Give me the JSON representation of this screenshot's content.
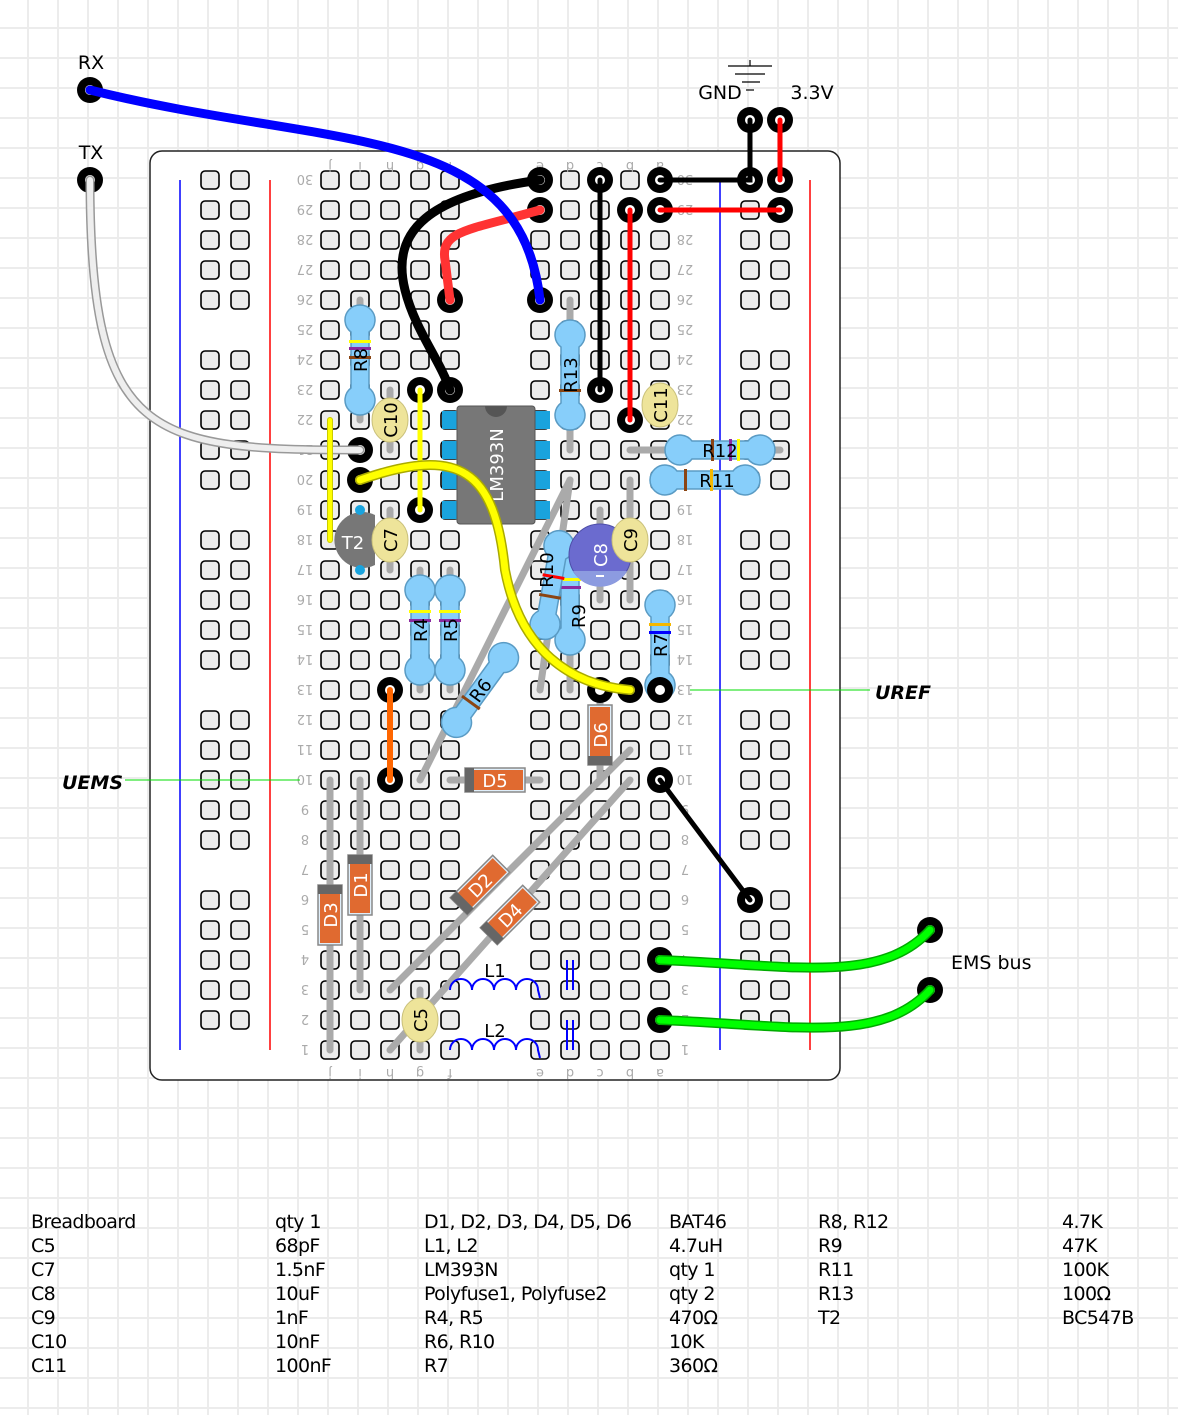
{
  "terminals": {
    "rx": "RX",
    "tx": "TX",
    "gnd": "GND",
    "v33": "3.3V",
    "ems_bus": "EMS bus"
  },
  "net_labels": {
    "uref": "UREF",
    "uems": "UEMS"
  },
  "breadboard": {
    "columns_left": [
      "j",
      "i",
      "h",
      "g",
      "f"
    ],
    "columns_right": [
      "e",
      "d",
      "c",
      "b",
      "a"
    ],
    "rows": [
      1,
      2,
      3,
      4,
      5,
      6,
      7,
      8,
      9,
      10,
      11,
      12,
      13,
      14,
      15,
      16,
      17,
      18,
      19,
      20,
      21,
      22,
      23,
      24,
      25,
      26,
      27,
      28,
      29,
      30
    ]
  },
  "components": {
    "ic": "LM393N",
    "r8": "R8",
    "r13": "R13",
    "r12": "R12",
    "r11": "R11",
    "r4": "R4",
    "r5": "R5",
    "r6": "R6",
    "r10": "R10",
    "r9": "R9",
    "r7": "R7",
    "c10": "C10",
    "c11": "C11",
    "c7": "C7",
    "c9": "C9",
    "c8": "C8",
    "c5": "C5",
    "t2": "T2",
    "d1": "D1",
    "d2": "D2",
    "d3": "D3",
    "d4": "D4",
    "d5": "D5",
    "d6": "D6",
    "l1": "L1",
    "l2": "L2"
  },
  "colors": {
    "wire_rx": "#0000ff",
    "wire_gnd": "#000000",
    "wire_vcc": "#ff0000",
    "wire_signal": "#ffff00",
    "wire_ems": "#00ee00",
    "wire_tx": "#dddddd",
    "wire_orange": "#ff6600",
    "resistor": "#87cefa",
    "diode": "#e06a30",
    "ceramic_cap": "#eee49a",
    "electrolytic_cap": "#6b6bcf",
    "ic": "#777777",
    "rail_pos": "#ff0000",
    "rail_neg": "#0000ff"
  },
  "bom": [
    [
      "Breadboard",
      "qty 1",
      "D1, D2, D3, D4, D5, D6",
      "BAT46",
      "R8, R12",
      "4.7K"
    ],
    [
      "C5",
      "68pF",
      "L1, L2",
      "4.7uH",
      "R9",
      "47K"
    ],
    [
      "C7",
      "1.5nF",
      "LM393N",
      "qty 1",
      "R11",
      "100K"
    ],
    [
      "C8",
      "10uF",
      "Polyfuse1, Polyfuse2",
      "qty 2",
      "R13",
      "100Ω"
    ],
    [
      "C9",
      "1nF",
      "R4, R5",
      "470Ω",
      "T2",
      "BC547B"
    ],
    [
      "C10",
      "10nF",
      "R6, R10",
      "10K",
      "",
      ""
    ],
    [
      "C11",
      "100nF",
      "R7",
      "360Ω",
      "",
      ""
    ]
  ]
}
